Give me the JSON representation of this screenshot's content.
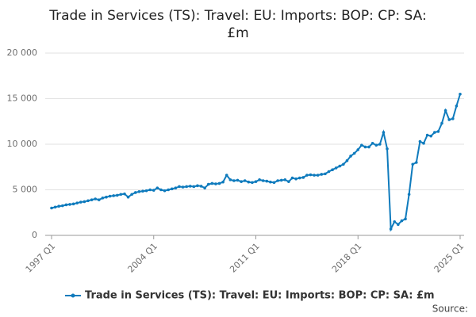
{
  "chart_data": {
    "type": "line",
    "title": [
      "Trade in Services (TS): Travel: EU: Imports: BOP: CP: SA:",
      "£m"
    ],
    "source": "Source:",
    "categories": [
      "1997 Q1",
      null,
      null,
      null,
      null,
      null,
      null,
      null,
      null,
      null,
      null,
      null,
      null,
      null,
      null,
      null,
      null,
      null,
      null,
      null,
      null,
      null,
      null,
      null,
      null,
      null,
      null,
      null,
      "2004 Q1",
      null,
      null,
      null,
      null,
      null,
      null,
      null,
      null,
      null,
      null,
      null,
      null,
      null,
      null,
      null,
      null,
      null,
      null,
      null,
      null,
      null,
      null,
      null,
      null,
      null,
      null,
      null,
      "2011 Q1",
      null,
      null,
      null,
      null,
      null,
      null,
      null,
      null,
      null,
      null,
      null,
      null,
      null,
      null,
      null,
      null,
      null,
      null,
      null,
      null,
      null,
      null,
      null,
      null,
      null,
      null,
      null,
      "2018 Q1",
      null,
      null,
      null,
      null,
      null,
      null,
      null,
      null,
      null,
      null,
      null,
      null,
      null,
      null,
      null,
      null,
      null,
      null,
      null,
      null,
      null,
      null,
      null,
      null,
      null,
      null,
      null,
      "2025 Q1"
    ],
    "series": [
      {
        "name": "Trade in Services (TS): Travel: EU: Imports: BOP: CP: SA: £m",
        "color": "#0f7bbd",
        "values": [
          3000,
          3100,
          3200,
          3250,
          3350,
          3400,
          3450,
          3550,
          3650,
          3700,
          3800,
          3900,
          4000,
          3900,
          4100,
          4200,
          4300,
          4350,
          4400,
          4500,
          4550,
          4200,
          4500,
          4700,
          4800,
          4850,
          4900,
          5000,
          4950,
          5200,
          5000,
          4900,
          5000,
          5100,
          5200,
          5350,
          5300,
          5350,
          5400,
          5350,
          5450,
          5400,
          5200,
          5600,
          5700,
          5650,
          5700,
          5850,
          6600,
          6100,
          6000,
          6050,
          5900,
          6000,
          5850,
          5800,
          5900,
          6100,
          6000,
          5950,
          5850,
          5800,
          6000,
          6050,
          6100,
          5900,
          6300,
          6200,
          6300,
          6350,
          6600,
          6650,
          6600,
          6600,
          6700,
          6750,
          7000,
          7200,
          7400,
          7600,
          7800,
          8200,
          8700,
          9000,
          9400,
          9900,
          9700,
          9700,
          10100,
          9900,
          10000,
          11300,
          9500,
          700,
          1500,
          1200,
          1600,
          1800,
          4500,
          7800,
          8000,
          10300,
          10100,
          11000,
          10900,
          11300,
          11400,
          12300,
          13700,
          12700,
          12800,
          14200,
          15500
        ]
      }
    ],
    "ylim": [
      0,
      20000
    ],
    "yticks": [
      {
        "value": 0,
        "label": "0"
      },
      {
        "value": 5000,
        "label": "5 000"
      },
      {
        "value": 10000,
        "label": "10 000"
      },
      {
        "value": 15000,
        "label": "15 000"
      },
      {
        "value": 20000,
        "label": "20 000"
      }
    ],
    "grid": true
  }
}
